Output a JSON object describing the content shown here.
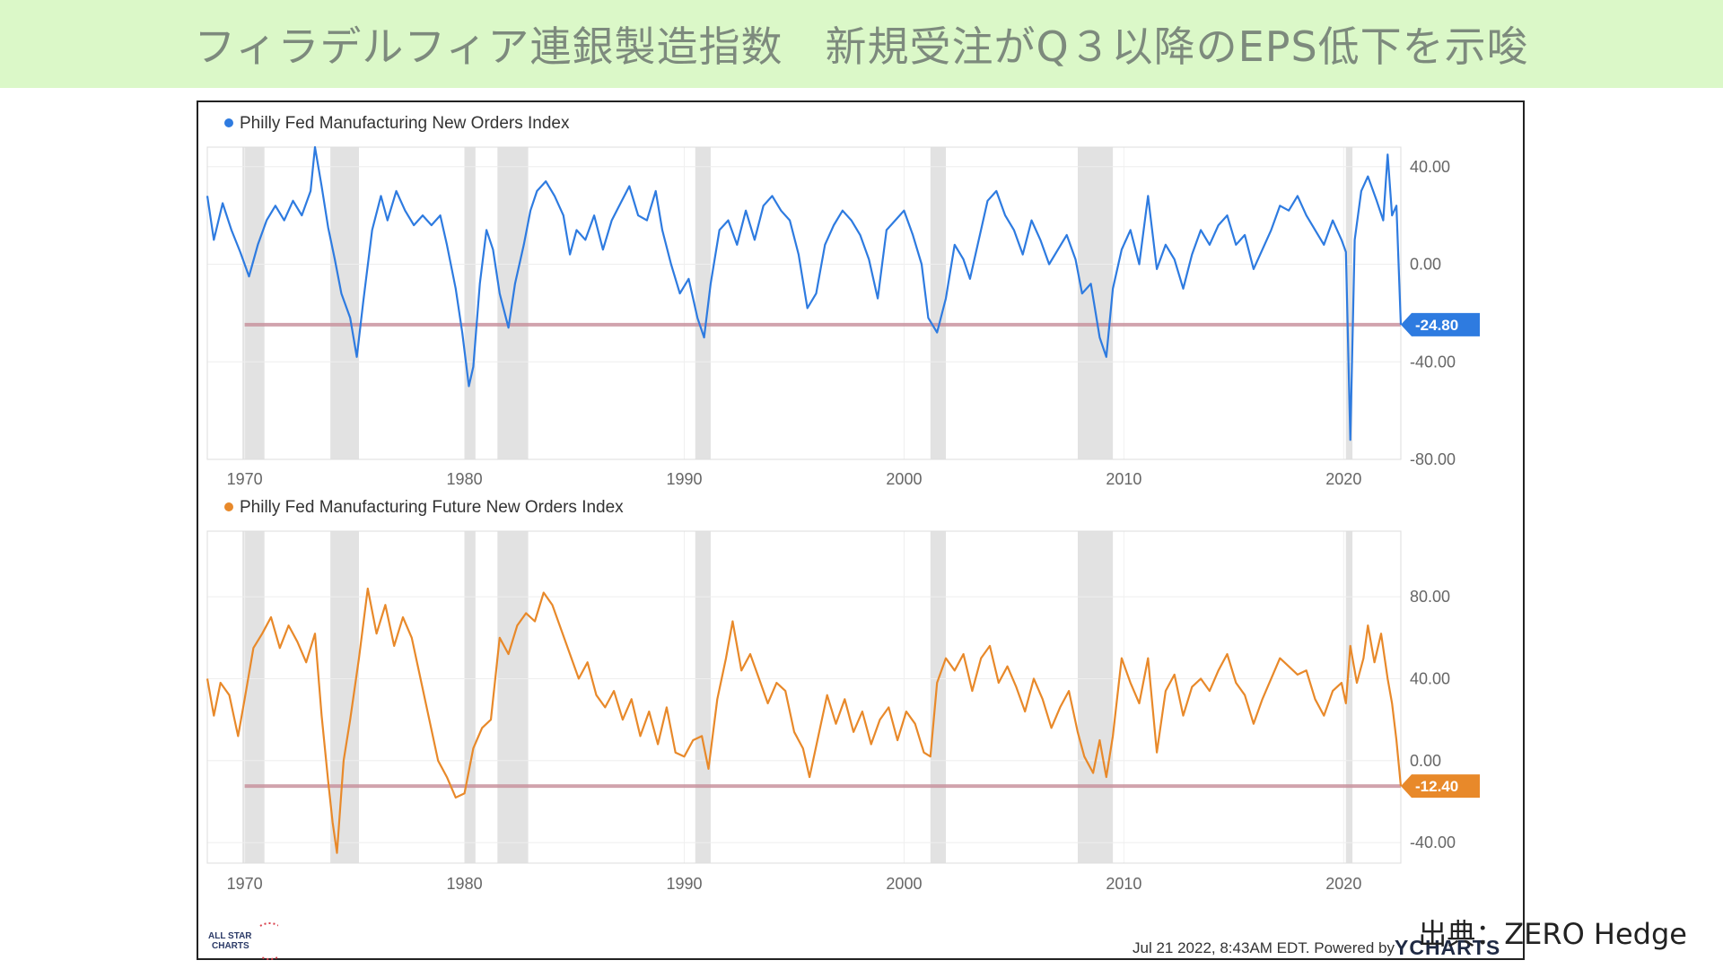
{
  "header": {
    "title": "フィラデルフィア連銀製造指数　新規受注がQ３以降のEPS低下を示唆"
  },
  "source_label": "出典：ZERO Hedge",
  "footer": {
    "timestamp": "Jul 21 2022, 8:43AM EDT. Powered by",
    "brand": "YCHARTS",
    "logo_lines": [
      "ALL STAR",
      "CHARTS"
    ]
  },
  "colors": {
    "banner": "#dbf8c8",
    "series_new_orders": "#2e7be0",
    "series_future": "#e8892a",
    "reference_line": "#c9949f",
    "recession_band": "#e2e2e2"
  },
  "chart_data": [
    {
      "type": "line",
      "title": "",
      "legend": [
        "Philly Fed Manufacturing New Orders Index"
      ],
      "series": [
        {
          "name": "Philly Fed Manufacturing New Orders Index",
          "color": "#2e7be0"
        }
      ],
      "x_ticks": [
        "1970",
        "1980",
        "1990",
        "2000",
        "2010",
        "2020"
      ],
      "y_ticks": [
        "40.00",
        "0.00",
        "-40.00",
        "-80.00"
      ],
      "ylim": [
        -80,
        48
      ],
      "xlim": [
        1968.3,
        2022.6
      ],
      "latest_value": -24.8,
      "latest_label": "-24.80",
      "reference_line": -24.8,
      "recessions": [
        [
          1969.9,
          1970.9
        ],
        [
          1973.9,
          1975.2
        ],
        [
          1980.0,
          1980.5
        ],
        [
          1981.5,
          1982.9
        ],
        [
          1990.5,
          1991.2
        ],
        [
          2001.2,
          2001.9
        ],
        [
          2007.9,
          2009.5
        ],
        [
          2020.1,
          2020.4
        ]
      ],
      "points": [
        [
          1968.3,
          28
        ],
        [
          1968.6,
          10
        ],
        [
          1969.0,
          25
        ],
        [
          1969.4,
          14
        ],
        [
          1969.8,
          5
        ],
        [
          1970.2,
          -5
        ],
        [
          1970.6,
          8
        ],
        [
          1971.0,
          18
        ],
        [
          1971.4,
          24
        ],
        [
          1971.8,
          18
        ],
        [
          1972.2,
          26
        ],
        [
          1972.6,
          20
        ],
        [
          1973.0,
          30
        ],
        [
          1973.2,
          48
        ],
        [
          1973.5,
          32
        ],
        [
          1973.8,
          15
        ],
        [
          1974.1,
          2
        ],
        [
          1974.4,
          -12
        ],
        [
          1974.8,
          -22
        ],
        [
          1975.1,
          -38
        ],
        [
          1975.4,
          -15
        ],
        [
          1975.8,
          14
        ],
        [
          1976.2,
          28
        ],
        [
          1976.5,
          18
        ],
        [
          1976.9,
          30
        ],
        [
          1977.3,
          22
        ],
        [
          1977.7,
          16
        ],
        [
          1978.1,
          20
        ],
        [
          1978.5,
          16
        ],
        [
          1978.9,
          20
        ],
        [
          1979.2,
          8
        ],
        [
          1979.6,
          -10
        ],
        [
          1979.9,
          -28
        ],
        [
          1980.2,
          -50
        ],
        [
          1980.4,
          -42
        ],
        [
          1980.7,
          -8
        ],
        [
          1981.0,
          14
        ],
        [
          1981.3,
          6
        ],
        [
          1981.6,
          -12
        ],
        [
          1982.0,
          -26
        ],
        [
          1982.3,
          -8
        ],
        [
          1982.7,
          8
        ],
        [
          1983.0,
          22
        ],
        [
          1983.3,
          30
        ],
        [
          1983.7,
          34
        ],
        [
          1984.1,
          28
        ],
        [
          1984.5,
          20
        ],
        [
          1984.8,
          4
        ],
        [
          1985.1,
          14
        ],
        [
          1985.5,
          10
        ],
        [
          1985.9,
          20
        ],
        [
          1986.3,
          6
        ],
        [
          1986.7,
          18
        ],
        [
          1987.1,
          25
        ],
        [
          1987.5,
          32
        ],
        [
          1987.9,
          20
        ],
        [
          1988.3,
          18
        ],
        [
          1988.7,
          30
        ],
        [
          1989.0,
          14
        ],
        [
          1989.4,
          0
        ],
        [
          1989.8,
          -12
        ],
        [
          1990.2,
          -6
        ],
        [
          1990.6,
          -22
        ],
        [
          1990.9,
          -30
        ],
        [
          1991.2,
          -8
        ],
        [
          1991.6,
          14
        ],
        [
          1992.0,
          18
        ],
        [
          1992.4,
          8
        ],
        [
          1992.8,
          22
        ],
        [
          1993.2,
          10
        ],
        [
          1993.6,
          24
        ],
        [
          1994.0,
          28
        ],
        [
          1994.4,
          22
        ],
        [
          1994.8,
          18
        ],
        [
          1995.2,
          4
        ],
        [
          1995.6,
          -18
        ],
        [
          1996.0,
          -12
        ],
        [
          1996.4,
          8
        ],
        [
          1996.8,
          16
        ],
        [
          1997.2,
          22
        ],
        [
          1997.6,
          18
        ],
        [
          1998.0,
          12
        ],
        [
          1998.4,
          2
        ],
        [
          1998.8,
          -14
        ],
        [
          1999.2,
          14
        ],
        [
          1999.6,
          18
        ],
        [
          2000.0,
          22
        ],
        [
          2000.4,
          12
        ],
        [
          2000.8,
          0
        ],
        [
          2001.1,
          -22
        ],
        [
          2001.5,
          -28
        ],
        [
          2001.9,
          -14
        ],
        [
          2002.3,
          8
        ],
        [
          2002.7,
          2
        ],
        [
          2003.0,
          -6
        ],
        [
          2003.4,
          10
        ],
        [
          2003.8,
          26
        ],
        [
          2004.2,
          30
        ],
        [
          2004.6,
          20
        ],
        [
          2005.0,
          14
        ],
        [
          2005.4,
          4
        ],
        [
          2005.8,
          18
        ],
        [
          2006.2,
          10
        ],
        [
          2006.6,
          0
        ],
        [
          2007.0,
          6
        ],
        [
          2007.4,
          12
        ],
        [
          2007.8,
          2
        ],
        [
          2008.1,
          -12
        ],
        [
          2008.5,
          -8
        ],
        [
          2008.9,
          -30
        ],
        [
          2009.2,
          -38
        ],
        [
          2009.5,
          -10
        ],
        [
          2009.9,
          6
        ],
        [
          2010.3,
          14
        ],
        [
          2010.7,
          0
        ],
        [
          2011.1,
          28
        ],
        [
          2011.5,
          -2
        ],
        [
          2011.9,
          8
        ],
        [
          2012.3,
          2
        ],
        [
          2012.7,
          -10
        ],
        [
          2013.1,
          4
        ],
        [
          2013.5,
          14
        ],
        [
          2013.9,
          8
        ],
        [
          2014.3,
          16
        ],
        [
          2014.7,
          20
        ],
        [
          2015.1,
          8
        ],
        [
          2015.5,
          12
        ],
        [
          2015.9,
          -2
        ],
        [
          2016.3,
          6
        ],
        [
          2016.7,
          14
        ],
        [
          2017.1,
          24
        ],
        [
          2017.5,
          22
        ],
        [
          2017.9,
          28
        ],
        [
          2018.3,
          20
        ],
        [
          2018.7,
          14
        ],
        [
          2019.1,
          8
        ],
        [
          2019.5,
          18
        ],
        [
          2019.9,
          10
        ],
        [
          2020.1,
          5
        ],
        [
          2020.3,
          -72
        ],
        [
          2020.5,
          10
        ],
        [
          2020.8,
          30
        ],
        [
          2021.1,
          36
        ],
        [
          2021.5,
          26
        ],
        [
          2021.8,
          18
        ],
        [
          2022.0,
          45
        ],
        [
          2022.2,
          20
        ],
        [
          2022.4,
          24
        ],
        [
          2022.6,
          -24.8
        ]
      ]
    },
    {
      "type": "line",
      "title": "",
      "legend": [
        "Philly Fed Manufacturing Future New Orders Index"
      ],
      "series": [
        {
          "name": "Philly Fed Manufacturing Future New Orders Index",
          "color": "#e8892a"
        }
      ],
      "x_ticks": [
        "1970",
        "1980",
        "1990",
        "2000",
        "2010",
        "2020"
      ],
      "y_ticks": [
        "80.00",
        "40.00",
        "0.00",
        "-40.00"
      ],
      "ylim": [
        -50,
        112
      ],
      "xlim": [
        1968.3,
        2022.6
      ],
      "latest_value": -12.4,
      "latest_label": "-12.40",
      "reference_line": -12.4,
      "recessions": [
        [
          1969.9,
          1970.9
        ],
        [
          1973.9,
          1975.2
        ],
        [
          1980.0,
          1980.5
        ],
        [
          1981.5,
          1982.9
        ],
        [
          1990.5,
          1991.2
        ],
        [
          2001.2,
          2001.9
        ],
        [
          2007.9,
          2009.5
        ],
        [
          2020.1,
          2020.4
        ]
      ],
      "points": [
        [
          1968.3,
          40
        ],
        [
          1968.6,
          22
        ],
        [
          1968.9,
          38
        ],
        [
          1969.3,
          32
        ],
        [
          1969.7,
          12
        ],
        [
          1970.0,
          30
        ],
        [
          1970.4,
          55
        ],
        [
          1970.8,
          62
        ],
        [
          1971.2,
          70
        ],
        [
          1971.6,
          55
        ],
        [
          1972.0,
          66
        ],
        [
          1972.4,
          58
        ],
        [
          1972.8,
          48
        ],
        [
          1973.2,
          62
        ],
        [
          1973.5,
          22
        ],
        [
          1973.8,
          -10
        ],
        [
          1974.0,
          -30
        ],
        [
          1974.2,
          -45
        ],
        [
          1974.5,
          0
        ],
        [
          1974.8,
          20
        ],
        [
          1975.2,
          50
        ],
        [
          1975.6,
          84
        ],
        [
          1976.0,
          62
        ],
        [
          1976.4,
          76
        ],
        [
          1976.8,
          56
        ],
        [
          1977.2,
          70
        ],
        [
          1977.6,
          60
        ],
        [
          1978.0,
          40
        ],
        [
          1978.4,
          20
        ],
        [
          1978.8,
          0
        ],
        [
          1979.2,
          -8
        ],
        [
          1979.6,
          -18
        ],
        [
          1980.0,
          -16
        ],
        [
          1980.4,
          6
        ],
        [
          1980.8,
          16
        ],
        [
          1981.2,
          20
        ],
        [
          1981.6,
          60
        ],
        [
          1982.0,
          52
        ],
        [
          1982.4,
          66
        ],
        [
          1982.8,
          72
        ],
        [
          1983.2,
          68
        ],
        [
          1983.6,
          82
        ],
        [
          1984.0,
          76
        ],
        [
          1984.4,
          64
        ],
        [
          1984.8,
          52
        ],
        [
          1985.2,
          40
        ],
        [
          1985.6,
          48
        ],
        [
          1986.0,
          32
        ],
        [
          1986.4,
          26
        ],
        [
          1986.8,
          34
        ],
        [
          1987.2,
          20
        ],
        [
          1987.6,
          30
        ],
        [
          1988.0,
          12
        ],
        [
          1988.4,
          24
        ],
        [
          1988.8,
          8
        ],
        [
          1989.2,
          26
        ],
        [
          1989.6,
          4
        ],
        [
          1990.0,
          2
        ],
        [
          1990.4,
          10
        ],
        [
          1990.8,
          12
        ],
        [
          1991.1,
          -4
        ],
        [
          1991.5,
          30
        ],
        [
          1991.9,
          50
        ],
        [
          1992.2,
          68
        ],
        [
          1992.6,
          44
        ],
        [
          1993.0,
          52
        ],
        [
          1993.4,
          40
        ],
        [
          1993.8,
          28
        ],
        [
          1994.2,
          38
        ],
        [
          1994.6,
          34
        ],
        [
          1995.0,
          14
        ],
        [
          1995.4,
          6
        ],
        [
          1995.7,
          -8
        ],
        [
          1996.1,
          12
        ],
        [
          1996.5,
          32
        ],
        [
          1996.9,
          18
        ],
        [
          1997.3,
          30
        ],
        [
          1997.7,
          14
        ],
        [
          1998.1,
          24
        ],
        [
          1998.5,
          8
        ],
        [
          1998.9,
          20
        ],
        [
          1999.3,
          26
        ],
        [
          1999.7,
          10
        ],
        [
          2000.1,
          24
        ],
        [
          2000.5,
          18
        ],
        [
          2000.9,
          4
        ],
        [
          2001.2,
          2
        ],
        [
          2001.5,
          38
        ],
        [
          2001.9,
          50
        ],
        [
          2002.3,
          44
        ],
        [
          2002.7,
          52
        ],
        [
          2003.1,
          34
        ],
        [
          2003.5,
          50
        ],
        [
          2003.9,
          56
        ],
        [
          2004.3,
          38
        ],
        [
          2004.7,
          46
        ],
        [
          2005.1,
          36
        ],
        [
          2005.5,
          24
        ],
        [
          2005.9,
          40
        ],
        [
          2006.3,
          30
        ],
        [
          2006.7,
          16
        ],
        [
          2007.1,
          26
        ],
        [
          2007.5,
          34
        ],
        [
          2007.9,
          14
        ],
        [
          2008.2,
          2
        ],
        [
          2008.6,
          -6
        ],
        [
          2008.9,
          10
        ],
        [
          2009.2,
          -8
        ],
        [
          2009.5,
          12
        ],
        [
          2009.9,
          50
        ],
        [
          2010.3,
          38
        ],
        [
          2010.7,
          28
        ],
        [
          2011.1,
          50
        ],
        [
          2011.5,
          4
        ],
        [
          2011.9,
          34
        ],
        [
          2012.3,
          42
        ],
        [
          2012.7,
          22
        ],
        [
          2013.1,
          36
        ],
        [
          2013.5,
          40
        ],
        [
          2013.9,
          34
        ],
        [
          2014.3,
          44
        ],
        [
          2014.7,
          52
        ],
        [
          2015.1,
          38
        ],
        [
          2015.5,
          32
        ],
        [
          2015.9,
          18
        ],
        [
          2016.3,
          30
        ],
        [
          2016.7,
          40
        ],
        [
          2017.1,
          50
        ],
        [
          2017.5,
          46
        ],
        [
          2017.9,
          42
        ],
        [
          2018.3,
          44
        ],
        [
          2018.7,
          30
        ],
        [
          2019.1,
          22
        ],
        [
          2019.5,
          34
        ],
        [
          2019.9,
          38
        ],
        [
          2020.1,
          28
        ],
        [
          2020.3,
          56
        ],
        [
          2020.6,
          38
        ],
        [
          2020.9,
          50
        ],
        [
          2021.1,
          66
        ],
        [
          2021.4,
          48
        ],
        [
          2021.7,
          62
        ],
        [
          2022.0,
          40
        ],
        [
          2022.2,
          28
        ],
        [
          2022.4,
          10
        ],
        [
          2022.6,
          -12.4
        ]
      ]
    }
  ]
}
